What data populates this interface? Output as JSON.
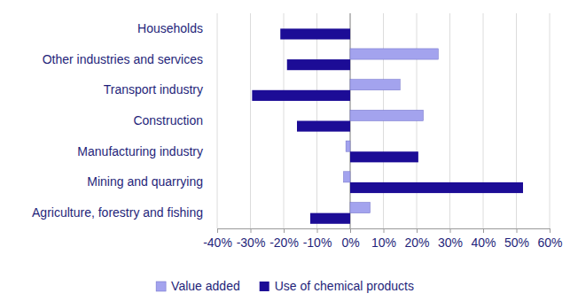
{
  "chart_data": {
    "type": "bar",
    "orientation": "horizontal",
    "categories": [
      "Households",
      "Other industries and services",
      "Transport industry",
      "Construction",
      "Manufacturing industry",
      "Mining and quarrying",
      "Agriculture, forestry and fishing"
    ],
    "series": [
      {
        "name": "Value added",
        "color": "#a3a3ee",
        "values": [
          null,
          26.5,
          15,
          22,
          -1.3,
          -2,
          6
        ]
      },
      {
        "name": "Use of chemical products",
        "color": "#1c0c96",
        "values": [
          -21,
          -19,
          -29.5,
          -16,
          20.5,
          52,
          -12
        ]
      }
    ],
    "xlim": [
      -40,
      60
    ],
    "xticks": [
      {
        "value": -40,
        "label": "-40%"
      },
      {
        "value": -30,
        "label": "-30%"
      },
      {
        "value": -20,
        "label": "-20%"
      },
      {
        "value": -10,
        "label": "-10%"
      },
      {
        "value": 0,
        "label": "0%"
      },
      {
        "value": 10,
        "label": "10%"
      },
      {
        "value": 20,
        "label": "20%"
      },
      {
        "value": 30,
        "label": "30%"
      },
      {
        "value": 40,
        "label": "40%"
      },
      {
        "value": 50,
        "label": "50%"
      },
      {
        "value": 60,
        "label": "60%"
      }
    ],
    "grid": true,
    "legend": "bottom"
  }
}
